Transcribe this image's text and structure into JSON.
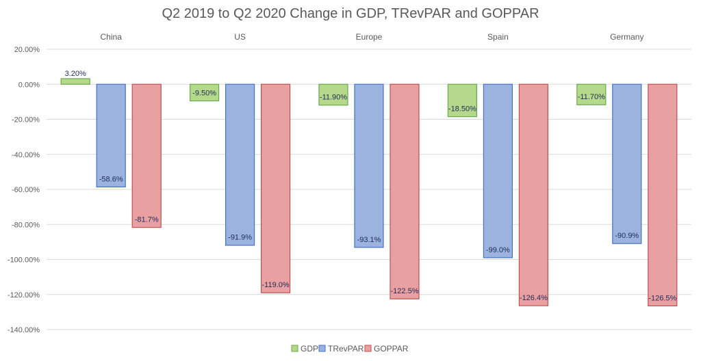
{
  "chart_data": {
    "type": "bar",
    "title": "Q2 2019 to Q2 2020 Change in GDP, TRevPAR and GOPPAR",
    "categories": [
      "China",
      "US",
      "Europe",
      "Spain",
      "Germany"
    ],
    "series": [
      {
        "name": "GDP",
        "values": [
          3.2,
          -9.5,
          -11.9,
          -18.5,
          -11.7
        ],
        "labels": [
          "3.20%",
          "-9.50%",
          "-11.90%",
          "-18.50%",
          "-11.70%"
        ],
        "fill": "#b5d98a",
        "stroke": "#6aa84f"
      },
      {
        "name": "TRevPAR",
        "values": [
          -58.6,
          -91.9,
          -93.1,
          -99.0,
          -90.9
        ],
        "labels": [
          "-58.6%",
          "-91.9%",
          "-93.1%",
          "-99.0%",
          "-90.9%"
        ],
        "fill": "#9db3df",
        "stroke": "#4472c4"
      },
      {
        "name": "GOPPAR",
        "values": [
          -81.7,
          -119.0,
          -122.5,
          -126.4,
          -126.5
        ],
        "labels": [
          "-81.7%",
          "-119.0%",
          "-122.5%",
          "-126.4%",
          "-126.5%"
        ],
        "fill": "#e8a0a2",
        "stroke": "#c0504d"
      }
    ],
    "ylim": [
      -140,
      20
    ],
    "yticks": [
      20,
      0,
      -20,
      -40,
      -60,
      -80,
      -100,
      -120,
      -140
    ],
    "ytick_labels": [
      "20.00%",
      "0.00%",
      "-20.00%",
      "-40.00%",
      "-60.00%",
      "-80.00%",
      "-100.00%",
      "-120.00%",
      "-140.00%"
    ],
    "grid": true,
    "legend_position": "bottom",
    "xlabel": "",
    "ylabel": ""
  }
}
